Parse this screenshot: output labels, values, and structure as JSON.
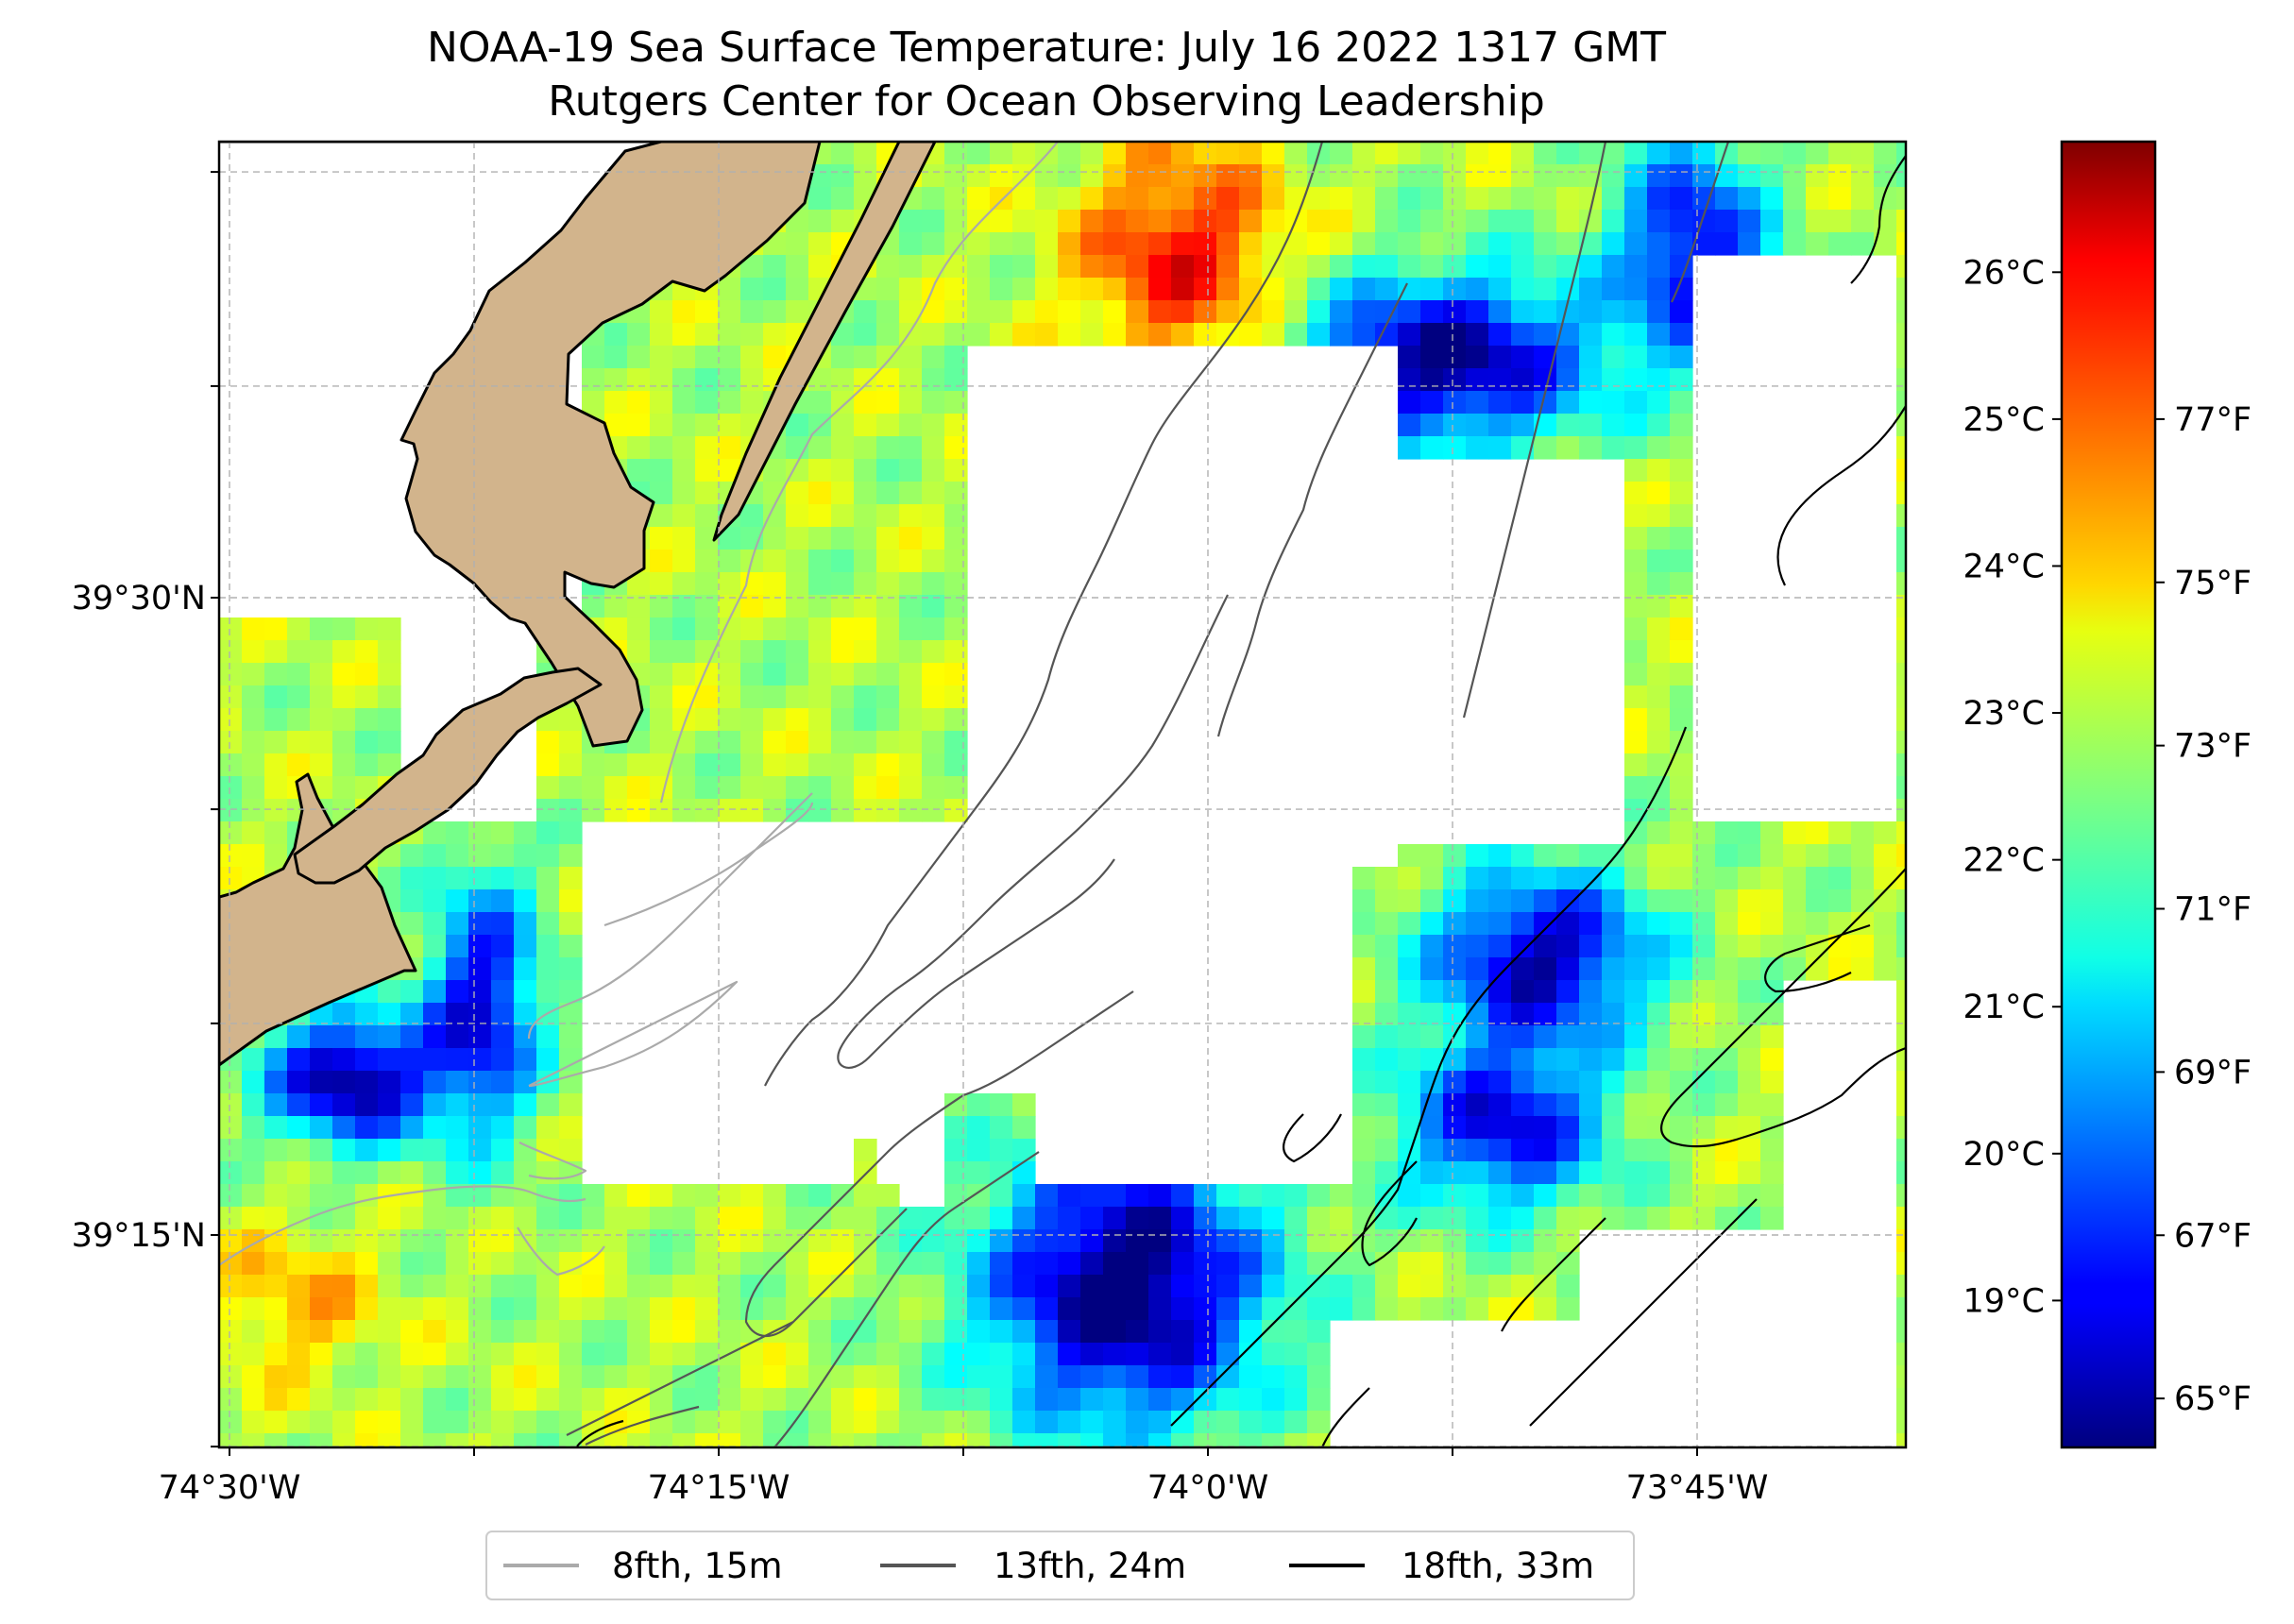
{
  "title": "NOAA-19 Sea Surface Temperature: July 16 2022 1317 GMT",
  "subtitle": "Rutgers Center for Ocean Observing Leadership",
  "map": {
    "x_ticks": [
      {
        "label": "74°30'W",
        "lon": -74.5
      },
      {
        "label": "74°15'W",
        "lon": -74.25
      },
      {
        "label": "74°0'W",
        "lon": -74.0
      },
      {
        "label": "73°45'W",
        "lon": -73.75
      }
    ],
    "y_ticks": [
      {
        "label": "39°30'N",
        "lat": 39.5
      },
      {
        "label": "39°15'N",
        "lat": 39.25
      }
    ],
    "land_color": "#d2b48c",
    "gridlines": true
  },
  "colorbar": {
    "cmap": "jet",
    "celsius_labels": [
      "26°C",
      "25°C",
      "24°C",
      "23°C",
      "22°C",
      "21°C",
      "20°C",
      "19°C"
    ],
    "celsius_values": [
      26,
      25,
      24,
      23,
      22,
      21,
      20,
      19
    ],
    "fahrenheit_labels": [
      "77°F",
      "75°F",
      "73°F",
      "71°F",
      "69°F",
      "67°F",
      "65°F"
    ],
    "fahrenheit_values": [
      77,
      75,
      73,
      71,
      69,
      67,
      65
    ],
    "f_min": 64.4,
    "f_max": 80.4
  },
  "legend": {
    "items": [
      {
        "label": "8fth, 15m",
        "color": "#aaaaaa"
      },
      {
        "label": "13fth, 24m",
        "color": "#555555"
      },
      {
        "label": "18fth, 33m",
        "color": "#000000"
      }
    ]
  }
}
